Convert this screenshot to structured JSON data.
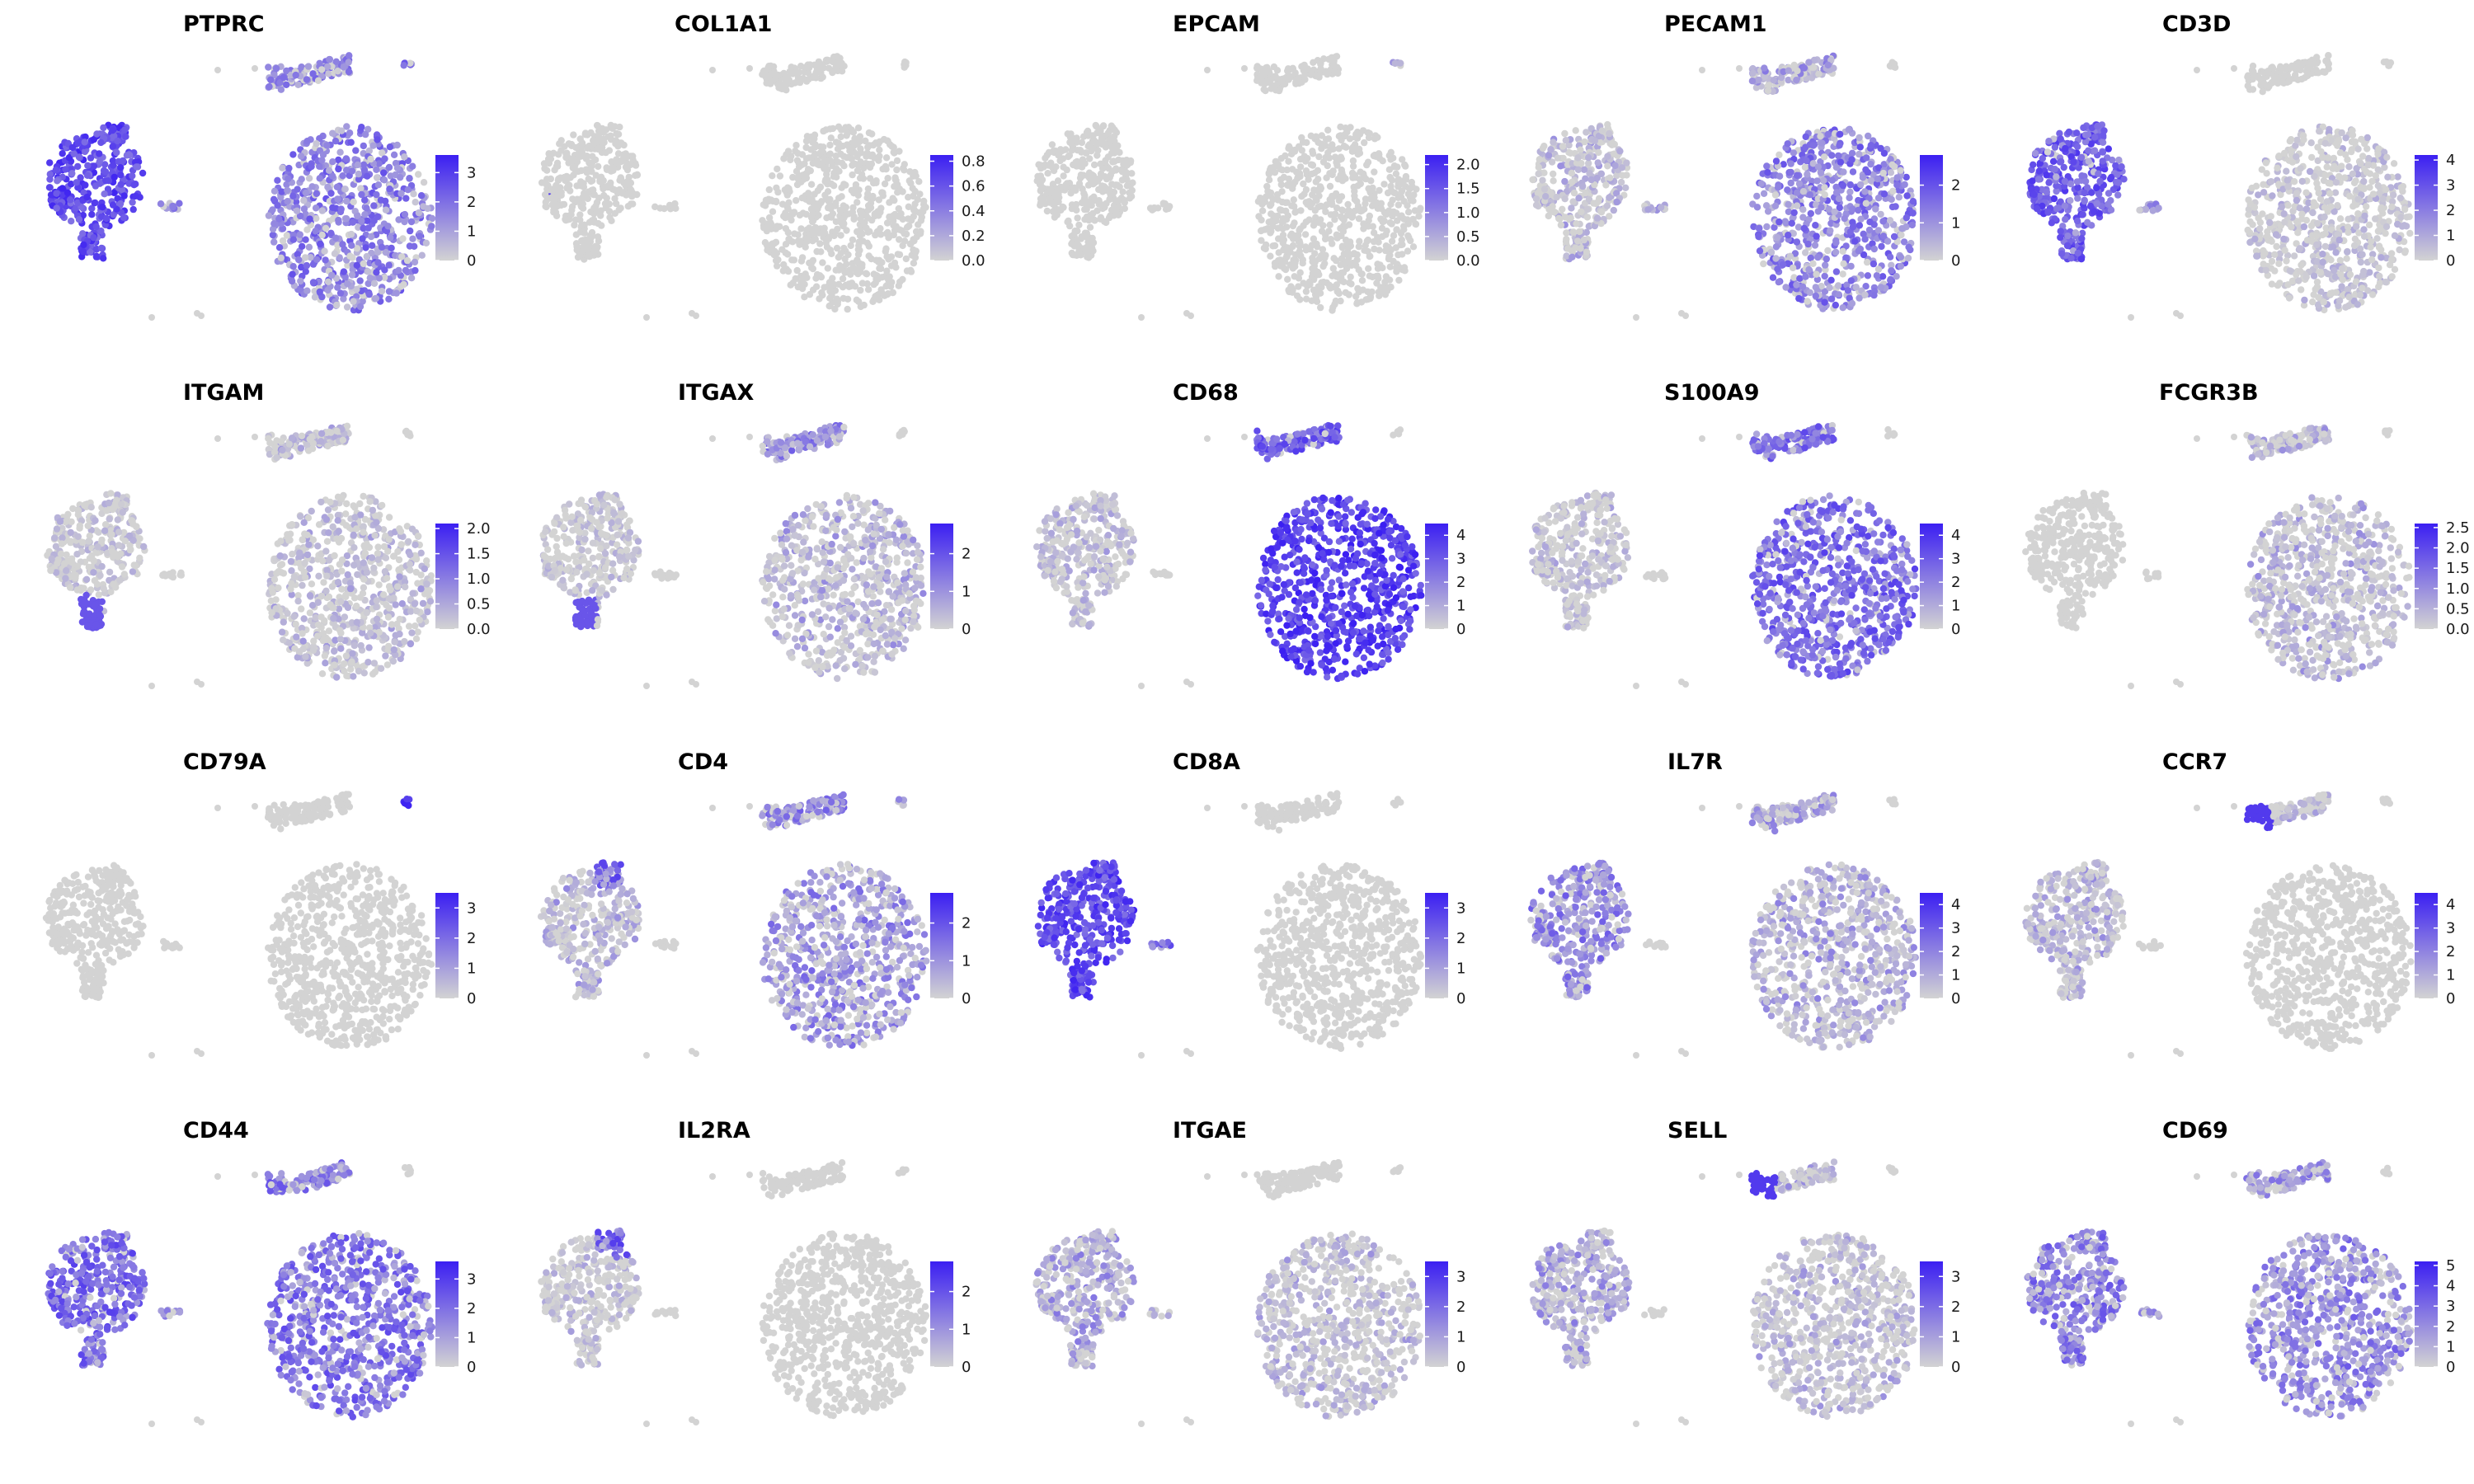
{
  "colors": {
    "low": "#d3d3d3",
    "high": "#3b1ff2",
    "background": "#ffffff"
  },
  "chart_data": [
    {
      "type": "scatter",
      "title": "PTPRC",
      "legend_ticks": [
        "0",
        "1",
        "2",
        "3"
      ],
      "max": 3.6,
      "levels": {
        "tcell": 0.75,
        "mye": 0.5,
        "top": 0.45,
        "small": 0.45,
        "tiny": 0.5
      },
      "focus": null
    },
    {
      "type": "scatter",
      "title": "COL1A1",
      "legend_ticks": [
        "0.0",
        "0.2",
        "0.4",
        "0.6",
        "0.8"
      ],
      "max": 0.85,
      "levels": {
        "tcell": 0,
        "mye": 0,
        "top": 0,
        "small": 0,
        "tiny": 0
      },
      "focus": "tcell-rare"
    },
    {
      "type": "scatter",
      "title": "EPCAM",
      "legend_ticks": [
        "0.0",
        "0.5",
        "1.0",
        "1.5",
        "2.0"
      ],
      "max": 2.2,
      "levels": {
        "tcell": 0,
        "mye": 0,
        "top": 0,
        "small": 0,
        "tiny": 0.3
      },
      "focus": "tcell-rare"
    },
    {
      "type": "scatter",
      "title": "PECAM1",
      "legend_ticks": [
        "0",
        "1",
        "2"
      ],
      "max": 2.8,
      "levels": {
        "tcell": 0.15,
        "mye": 0.5,
        "top": 0.3,
        "small": 0.3,
        "tiny": 0
      },
      "focus": null
    },
    {
      "type": "scatter",
      "title": "CD3D",
      "legend_ticks": [
        "0",
        "1",
        "2",
        "3",
        "4"
      ],
      "max": 4.2,
      "levels": {
        "tcell": 0.65,
        "mye": 0.05,
        "top": 0,
        "small": 0.4,
        "tiny": 0
      },
      "focus": null
    },
    {
      "type": "scatter",
      "title": "ITGAM",
      "legend_ticks": [
        "0.0",
        "0.5",
        "1.0",
        "1.5",
        "2.0"
      ],
      "max": 2.1,
      "levels": {
        "tcell": 0.02,
        "mye": 0.12,
        "top": 0.15,
        "small": 0,
        "tiny": 0
      },
      "focus": "tcell-bottom"
    },
    {
      "type": "scatter",
      "title": "ITGAX",
      "legend_ticks": [
        "0",
        "1",
        "2"
      ],
      "max": 2.8,
      "levels": {
        "tcell": 0.02,
        "mye": 0.2,
        "top": 0.45,
        "small": 0,
        "tiny": 0
      },
      "focus": "tcell-bottom"
    },
    {
      "type": "scatter",
      "title": "CD68",
      "legend_ticks": [
        "0",
        "1",
        "2",
        "3",
        "4"
      ],
      "max": 4.5,
      "levels": {
        "tcell": 0.15,
        "mye": 0.8,
        "top": 0.65,
        "small": 0,
        "tiny": 0
      },
      "focus": null
    },
    {
      "type": "scatter",
      "title": "S100A9",
      "legend_ticks": [
        "0",
        "1",
        "2",
        "3",
        "4"
      ],
      "max": 4.5,
      "levels": {
        "tcell": 0.1,
        "mye": 0.6,
        "top": 0.55,
        "small": 0,
        "tiny": 0
      },
      "focus": null
    },
    {
      "type": "scatter",
      "title": "FCGR3B",
      "legend_ticks": [
        "0.0",
        "0.5",
        "1.0",
        "1.5",
        "2.0",
        "2.5"
      ],
      "max": 2.6,
      "levels": {
        "tcell": 0,
        "mye": 0.2,
        "top": 0.2,
        "small": 0,
        "tiny": 0
      },
      "focus": null
    },
    {
      "type": "scatter",
      "title": "CD79A",
      "legend_ticks": [
        "0",
        "1",
        "2",
        "3"
      ],
      "max": 3.5,
      "levels": {
        "tcell": 0,
        "mye": 0,
        "top": 0,
        "small": 0,
        "tiny": 0.85
      },
      "focus": null
    },
    {
      "type": "scatter",
      "title": "CD4",
      "legend_ticks": [
        "0",
        "1",
        "2"
      ],
      "max": 2.8,
      "levels": {
        "tcell": 0.2,
        "mye": 0.4,
        "top": 0.45,
        "small": 0,
        "tiny": 0.4
      },
      "focus": "tcell-upper"
    },
    {
      "type": "scatter",
      "title": "CD8A",
      "legend_ticks": [
        "0",
        "1",
        "2",
        "3"
      ],
      "max": 3.5,
      "levels": {
        "tcell": 0.75,
        "mye": 0,
        "top": 0,
        "small": 0.6,
        "tiny": 0
      },
      "focus": null
    },
    {
      "type": "scatter",
      "title": "IL7R",
      "legend_ticks": [
        "0",
        "1",
        "2",
        "3",
        "4"
      ],
      "max": 4.5,
      "levels": {
        "tcell": 0.45,
        "mye": 0.25,
        "top": 0.3,
        "small": 0,
        "tiny": 0
      },
      "focus": null
    },
    {
      "type": "scatter",
      "title": "CCR7",
      "legend_ticks": [
        "0",
        "1",
        "2",
        "3",
        "4"
      ],
      "max": 4.5,
      "levels": {
        "tcell": 0.2,
        "mye": 0,
        "top": 0.15,
        "small": 0,
        "tiny": 0
      },
      "focus": "top-left"
    },
    {
      "type": "scatter",
      "title": "CD44",
      "legend_ticks": [
        "0",
        "1",
        "2",
        "3"
      ],
      "max": 3.6,
      "levels": {
        "tcell": 0.6,
        "mye": 0.55,
        "top": 0.5,
        "small": 0.4,
        "tiny": 0
      },
      "focus": null
    },
    {
      "type": "scatter",
      "title": "IL2RA",
      "legend_ticks": [
        "0",
        "1",
        "2"
      ],
      "max": 2.8,
      "levels": {
        "tcell": 0.1,
        "mye": 0,
        "top": 0,
        "small": 0,
        "tiny": 0
      },
      "focus": "tcell-upper"
    },
    {
      "type": "scatter",
      "title": "ITGAE",
      "legend_ticks": [
        "0",
        "1",
        "2",
        "3"
      ],
      "max": 3.5,
      "levels": {
        "tcell": 0.3,
        "mye": 0.15,
        "top": 0,
        "small": 0.2,
        "tiny": 0
      },
      "focus": null
    },
    {
      "type": "scatter",
      "title": "SELL",
      "legend_ticks": [
        "0",
        "1",
        "2",
        "3"
      ],
      "max": 3.5,
      "levels": {
        "tcell": 0.3,
        "mye": 0.15,
        "top": 0.2,
        "small": 0,
        "tiny": 0
      },
      "focus": "top-left"
    },
    {
      "type": "scatter",
      "title": "CD69",
      "legend_ticks": [
        "0",
        "1",
        "2",
        "3",
        "4",
        "5"
      ],
      "max": 5.2,
      "levels": {
        "tcell": 0.5,
        "mye": 0.45,
        "top": 0.35,
        "small": 0.3,
        "tiny": 0
      },
      "focus": null
    }
  ]
}
